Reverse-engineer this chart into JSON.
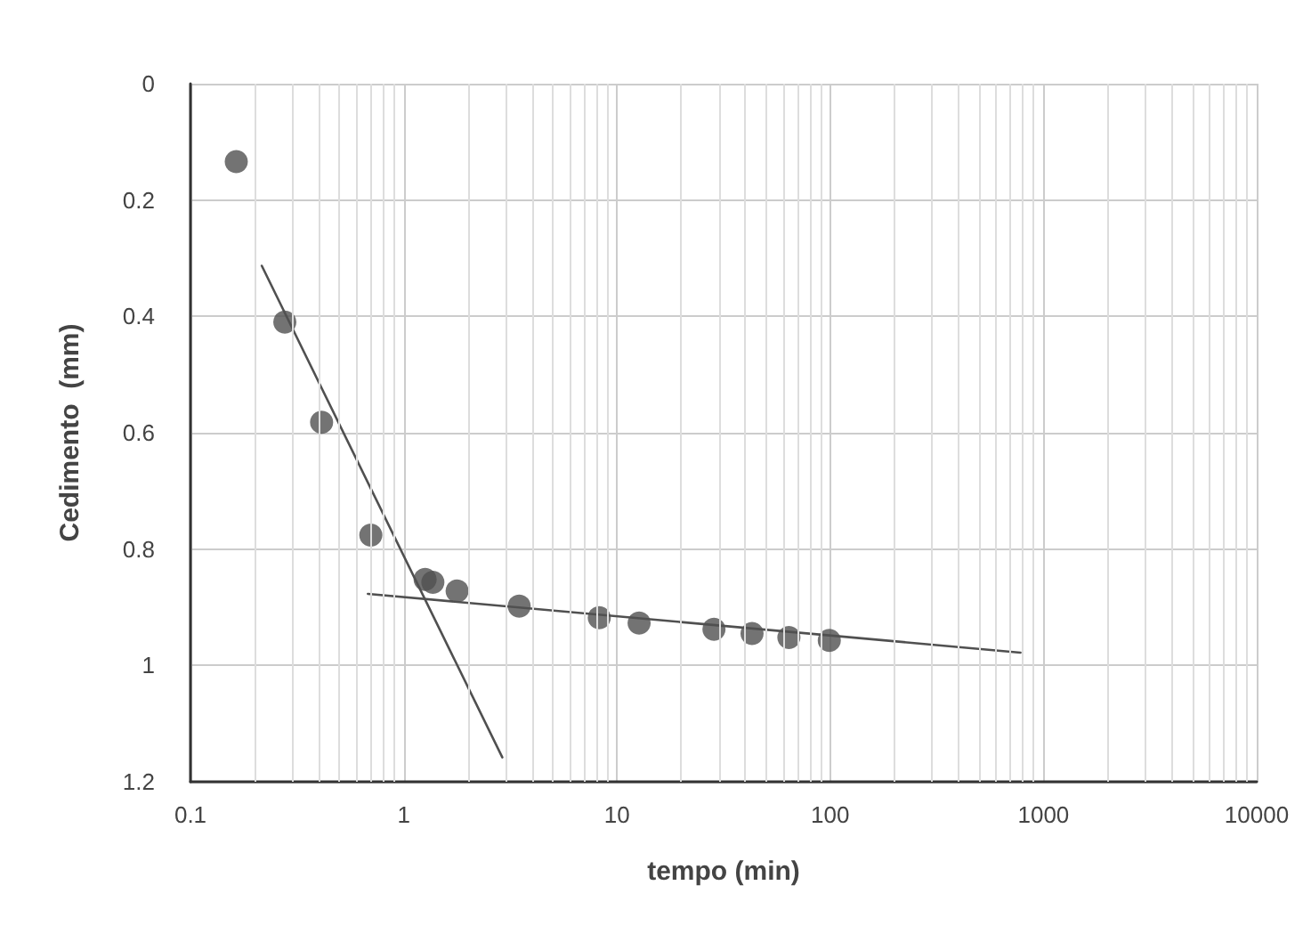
{
  "chart_data": {
    "type": "scatter",
    "xlabel": "tempo (min)",
    "ylabel": "Cedimento  (mm)",
    "log": "x",
    "grid": true,
    "marker": "circle",
    "xlim": [
      0.1,
      10000
    ],
    "xticks": [
      0.1,
      1,
      10,
      100,
      1000,
      10000
    ],
    "ylim": [
      1.2,
      0
    ],
    "yticks": [
      0,
      0.2,
      0.4,
      0.6,
      0.8,
      1,
      1.2
    ],
    "series": [
      {
        "color": "#505050",
        "x": [
          0.164,
          0.277,
          0.412,
          0.701,
          1.26,
          1.37,
          1.78,
          3.48,
          8.26,
          12.7,
          28.5,
          43,
          64,
          99
        ],
        "values": [
          0.134,
          0.41,
          0.582,
          0.776,
          0.852,
          0.857,
          0.872,
          0.898,
          0.918,
          0.927,
          0.938,
          0.945,
          0.952,
          0.957
        ]
      },
      {
        "type": "line",
        "color": "#505050",
        "marker": "none",
        "line_style": "solid",
        "x": [
          0.216,
          2.9
        ],
        "values": [
          0.313,
          1.158
        ]
      },
      {
        "type": "line",
        "color": "#505050",
        "marker": "none",
        "line_style": "solid",
        "x": [
          0.679,
          780
        ],
        "values": [
          0.877,
          0.978
        ]
      }
    ]
  }
}
